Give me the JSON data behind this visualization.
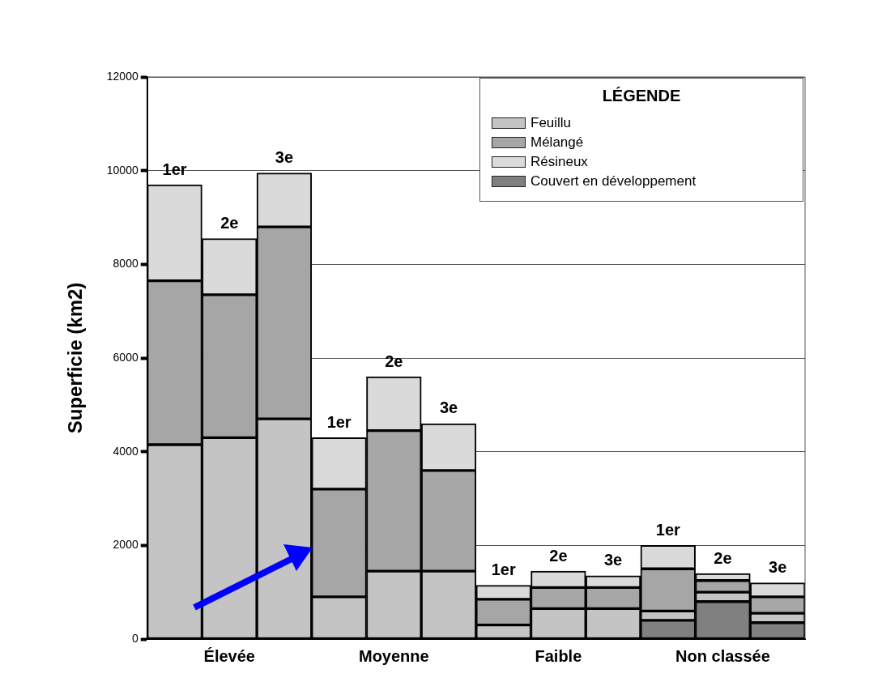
{
  "chart_data": {
    "type": "bar",
    "stacked": true,
    "ylabel": "Superficie (km2)",
    "legend_title": "LÉGENDE",
    "legend": "top right",
    "grid": "y",
    "categories": [
      null,
      "Élevée",
      null,
      null,
      "Moyenne",
      null,
      null,
      "Faible",
      null,
      null,
      "Non classée",
      null
    ],
    "ylim": [
      0,
      12000
    ],
    "yticks": [
      0,
      2000,
      4000,
      6000,
      8000,
      10000,
      12000
    ],
    "series": [
      {
        "name": "Couvert en développement",
        "color": "#808080",
        "values": [
          0,
          0,
          0,
          0,
          0,
          0,
          0,
          0,
          0,
          400,
          800,
          350
        ]
      },
      {
        "name": "Feuillu",
        "color": "#c4c4c4",
        "values": [
          4150,
          4300,
          4700,
          900,
          1450,
          1450,
          300,
          650,
          650,
          200,
          200,
          200
        ]
      },
      {
        "name": "Mélangé",
        "color": "#a6a6a6",
        "values": [
          3500,
          3050,
          4100,
          2300,
          3000,
          2150,
          550,
          450,
          450,
          900,
          250,
          350
        ]
      },
      {
        "name": "Résineux",
        "color": "#dadada",
        "values": [
          2050,
          1200,
          1150,
          1100,
          1150,
          1000,
          300,
          350,
          250,
          500,
          150,
          300
        ]
      }
    ],
    "annotations": [
      {
        "text": "1er",
        "y": 9700
      },
      {
        "text": "2e",
        "y": 8550
      },
      {
        "text": "3e",
        "y": 9950
      },
      {
        "text": "1er",
        "y": 4300
      },
      {
        "text": "2e",
        "y": 5600
      },
      {
        "text": "3e",
        "y": 4600
      },
      {
        "text": "1er",
        "y": 1150
      },
      {
        "text": "2e",
        "y": 1450
      },
      {
        "text": "3e",
        "y": 1350
      },
      {
        "text": "1er",
        "y": 2000
      },
      {
        "text": "2e",
        "y": 1400
      },
      {
        "text": "3e",
        "y": 1200
      }
    ]
  }
}
